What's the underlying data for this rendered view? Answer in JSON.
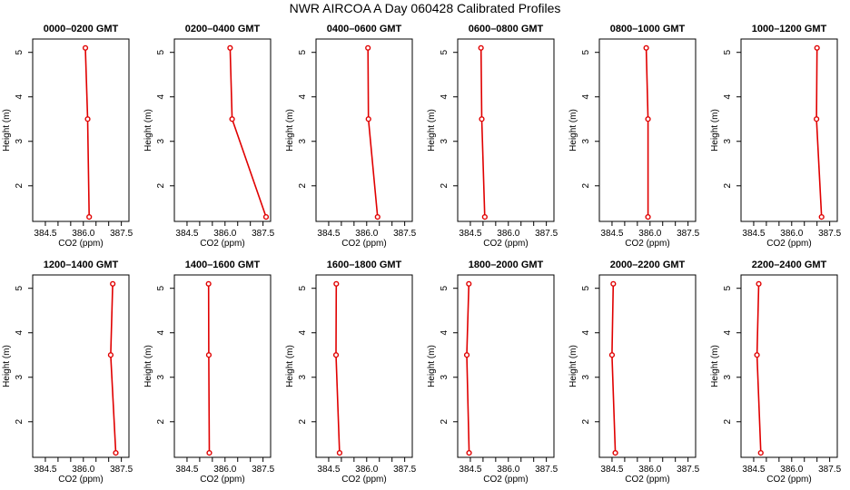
{
  "figure_title": "NWR AIRCOA A  Day 060428  Calibrated Profiles",
  "colors": {
    "series": "#e00000",
    "axis": "#000000"
  },
  "chart_data": [
    {
      "type": "line",
      "title": "0000–0200 GMT",
      "xlabel": "CO2 (ppm)",
      "ylabel": "Height (m)",
      "xlim": [
        384.0,
        387.8
      ],
      "ylim": [
        1.2,
        5.3
      ],
      "xticks": [
        384.5,
        386.0,
        387.5
      ],
      "xtick_labels": [
        "384.5",
        "386.0",
        "387.5"
      ],
      "yticks": [
        2,
        3,
        4,
        5
      ],
      "ytick_labels": [
        "2",
        "3",
        "4",
        "5"
      ],
      "x": [
        386.08,
        386.17,
        386.23
      ],
      "y": [
        5.1,
        3.5,
        1.3
      ]
    },
    {
      "type": "line",
      "title": "0200–0400 GMT",
      "xlabel": "CO2 (ppm)",
      "ylabel": "Height (m)",
      "xlim": [
        384.0,
        387.8
      ],
      "ylim": [
        1.2,
        5.3
      ],
      "xticks": [
        384.5,
        386.0,
        387.5
      ],
      "xtick_labels": [
        "384.5",
        "386.0",
        "387.5"
      ],
      "yticks": [
        2,
        3,
        4,
        5
      ],
      "ytick_labels": [
        "2",
        "3",
        "4",
        "5"
      ],
      "x": [
        386.2,
        386.28,
        387.62
      ],
      "y": [
        5.1,
        3.5,
        1.3
      ]
    },
    {
      "type": "line",
      "title": "0400–0600 GMT",
      "xlabel": "CO2 (ppm)",
      "ylabel": "Height (m)",
      "xlim": [
        384.0,
        387.8
      ],
      "ylim": [
        1.2,
        5.3
      ],
      "xticks": [
        384.5,
        386.0,
        387.5
      ],
      "xtick_labels": [
        "384.5",
        "386.0",
        "387.5"
      ],
      "yticks": [
        2,
        3,
        4,
        5
      ],
      "ytick_labels": [
        "2",
        "3",
        "4",
        "5"
      ],
      "x": [
        386.05,
        386.07,
        386.43
      ],
      "y": [
        5.1,
        3.5,
        1.3
      ]
    },
    {
      "type": "line",
      "title": "0600–0800 GMT",
      "xlabel": "CO2 (ppm)",
      "ylabel": "Height (m)",
      "xlim": [
        384.0,
        387.8
      ],
      "ylim": [
        1.2,
        5.3
      ],
      "xticks": [
        384.5,
        386.0,
        387.5
      ],
      "xtick_labels": [
        "384.5",
        "386.0",
        "387.5"
      ],
      "yticks": [
        2,
        3,
        4,
        5
      ],
      "ytick_labels": [
        "2",
        "3",
        "4",
        "5"
      ],
      "x": [
        384.92,
        384.95,
        385.07
      ],
      "y": [
        5.1,
        3.5,
        1.3
      ]
    },
    {
      "type": "line",
      "title": "0800–1000 GMT",
      "xlabel": "CO2 (ppm)",
      "ylabel": "Height (m)",
      "xlim": [
        384.0,
        387.8
      ],
      "ylim": [
        1.2,
        5.3
      ],
      "xticks": [
        384.5,
        386.0,
        387.5
      ],
      "xtick_labels": [
        "384.5",
        "386.0",
        "387.5"
      ],
      "yticks": [
        2,
        3,
        4,
        5
      ],
      "ytick_labels": [
        "2",
        "3",
        "4",
        "5"
      ],
      "x": [
        385.85,
        385.92,
        385.92
      ],
      "y": [
        5.1,
        3.5,
        1.3
      ]
    },
    {
      "type": "line",
      "title": "1000–1200 GMT",
      "xlabel": "CO2 (ppm)",
      "ylabel": "Height (m)",
      "xlim": [
        384.0,
        387.8
      ],
      "ylim": [
        1.2,
        5.3
      ],
      "xticks": [
        384.5,
        386.0,
        387.5
      ],
      "xtick_labels": [
        "384.5",
        "386.0",
        "387.5"
      ],
      "yticks": [
        2,
        3,
        4,
        5
      ],
      "ytick_labels": [
        "2",
        "3",
        "4",
        "5"
      ],
      "x": [
        387.0,
        386.98,
        387.18
      ],
      "y": [
        5.1,
        3.5,
        1.3
      ]
    },
    {
      "type": "line",
      "title": "1200–1400 GMT",
      "xlabel": "CO2 (ppm)",
      "ylabel": "Height (m)",
      "xlim": [
        384.0,
        387.8
      ],
      "ylim": [
        1.2,
        5.3
      ],
      "xticks": [
        384.5,
        386.0,
        387.5
      ],
      "xtick_labels": [
        "384.5",
        "386.0",
        "387.5"
      ],
      "yticks": [
        2,
        3,
        4,
        5
      ],
      "ytick_labels": [
        "2",
        "3",
        "4",
        "5"
      ],
      "x": [
        387.16,
        387.08,
        387.28
      ],
      "y": [
        5.1,
        3.5,
        1.3
      ]
    },
    {
      "type": "line",
      "title": "1400–1600 GMT",
      "xlabel": "CO2 (ppm)",
      "ylabel": "Height (m)",
      "xlim": [
        384.0,
        387.8
      ],
      "ylim": [
        1.2,
        5.3
      ],
      "xticks": [
        384.5,
        386.0,
        387.5
      ],
      "xtick_labels": [
        "384.5",
        "386.0",
        "387.5"
      ],
      "yticks": [
        2,
        3,
        4,
        5
      ],
      "ytick_labels": [
        "2",
        "3",
        "4",
        "5"
      ],
      "x": [
        385.35,
        385.36,
        385.38
      ],
      "y": [
        5.1,
        3.5,
        1.3
      ]
    },
    {
      "type": "line",
      "title": "1600–1800 GMT",
      "xlabel": "CO2 (ppm)",
      "ylabel": "Height (m)",
      "xlim": [
        384.0,
        387.8
      ],
      "ylim": [
        1.2,
        5.3
      ],
      "xticks": [
        384.5,
        386.0,
        387.5
      ],
      "xtick_labels": [
        "384.5",
        "386.0",
        "387.5"
      ],
      "yticks": [
        2,
        3,
        4,
        5
      ],
      "ytick_labels": [
        "2",
        "3",
        "4",
        "5"
      ],
      "x": [
        384.8,
        384.79,
        384.93
      ],
      "y": [
        5.1,
        3.5,
        1.3
      ]
    },
    {
      "type": "line",
      "title": "1800–2000 GMT",
      "xlabel": "CO2 (ppm)",
      "ylabel": "Height (m)",
      "xlim": [
        384.0,
        387.8
      ],
      "ylim": [
        1.2,
        5.3
      ],
      "xticks": [
        384.5,
        386.0,
        387.5
      ],
      "xtick_labels": [
        "384.5",
        "386.0",
        "387.5"
      ],
      "yticks": [
        2,
        3,
        4,
        5
      ],
      "ytick_labels": [
        "2",
        "3",
        "4",
        "5"
      ],
      "x": [
        384.44,
        384.36,
        384.45
      ],
      "y": [
        5.1,
        3.5,
        1.3
      ]
    },
    {
      "type": "line",
      "title": "2000–2200 GMT",
      "xlabel": "CO2 (ppm)",
      "ylabel": "Height (m)",
      "xlim": [
        384.0,
        387.8
      ],
      "ylim": [
        1.2,
        5.3
      ],
      "xticks": [
        384.5,
        386.0,
        387.5
      ],
      "xtick_labels": [
        "384.5",
        "386.0",
        "387.5"
      ],
      "yticks": [
        2,
        3,
        4,
        5
      ],
      "ytick_labels": [
        "2",
        "3",
        "4",
        "5"
      ],
      "x": [
        384.55,
        384.5,
        384.63
      ],
      "y": [
        5.1,
        3.5,
        1.3
      ]
    },
    {
      "type": "line",
      "title": "2200–2400 GMT",
      "xlabel": "CO2 (ppm)",
      "ylabel": "Height (m)",
      "xlim": [
        384.0,
        387.8
      ],
      "ylim": [
        1.2,
        5.3
      ],
      "xticks": [
        384.5,
        386.0,
        387.5
      ],
      "xtick_labels": [
        "384.5",
        "386.0",
        "387.5"
      ],
      "yticks": [
        2,
        3,
        4,
        5
      ],
      "ytick_labels": [
        "2",
        "3",
        "4",
        "5"
      ],
      "x": [
        384.7,
        384.63,
        384.78
      ],
      "y": [
        5.1,
        3.5,
        1.3
      ]
    }
  ]
}
